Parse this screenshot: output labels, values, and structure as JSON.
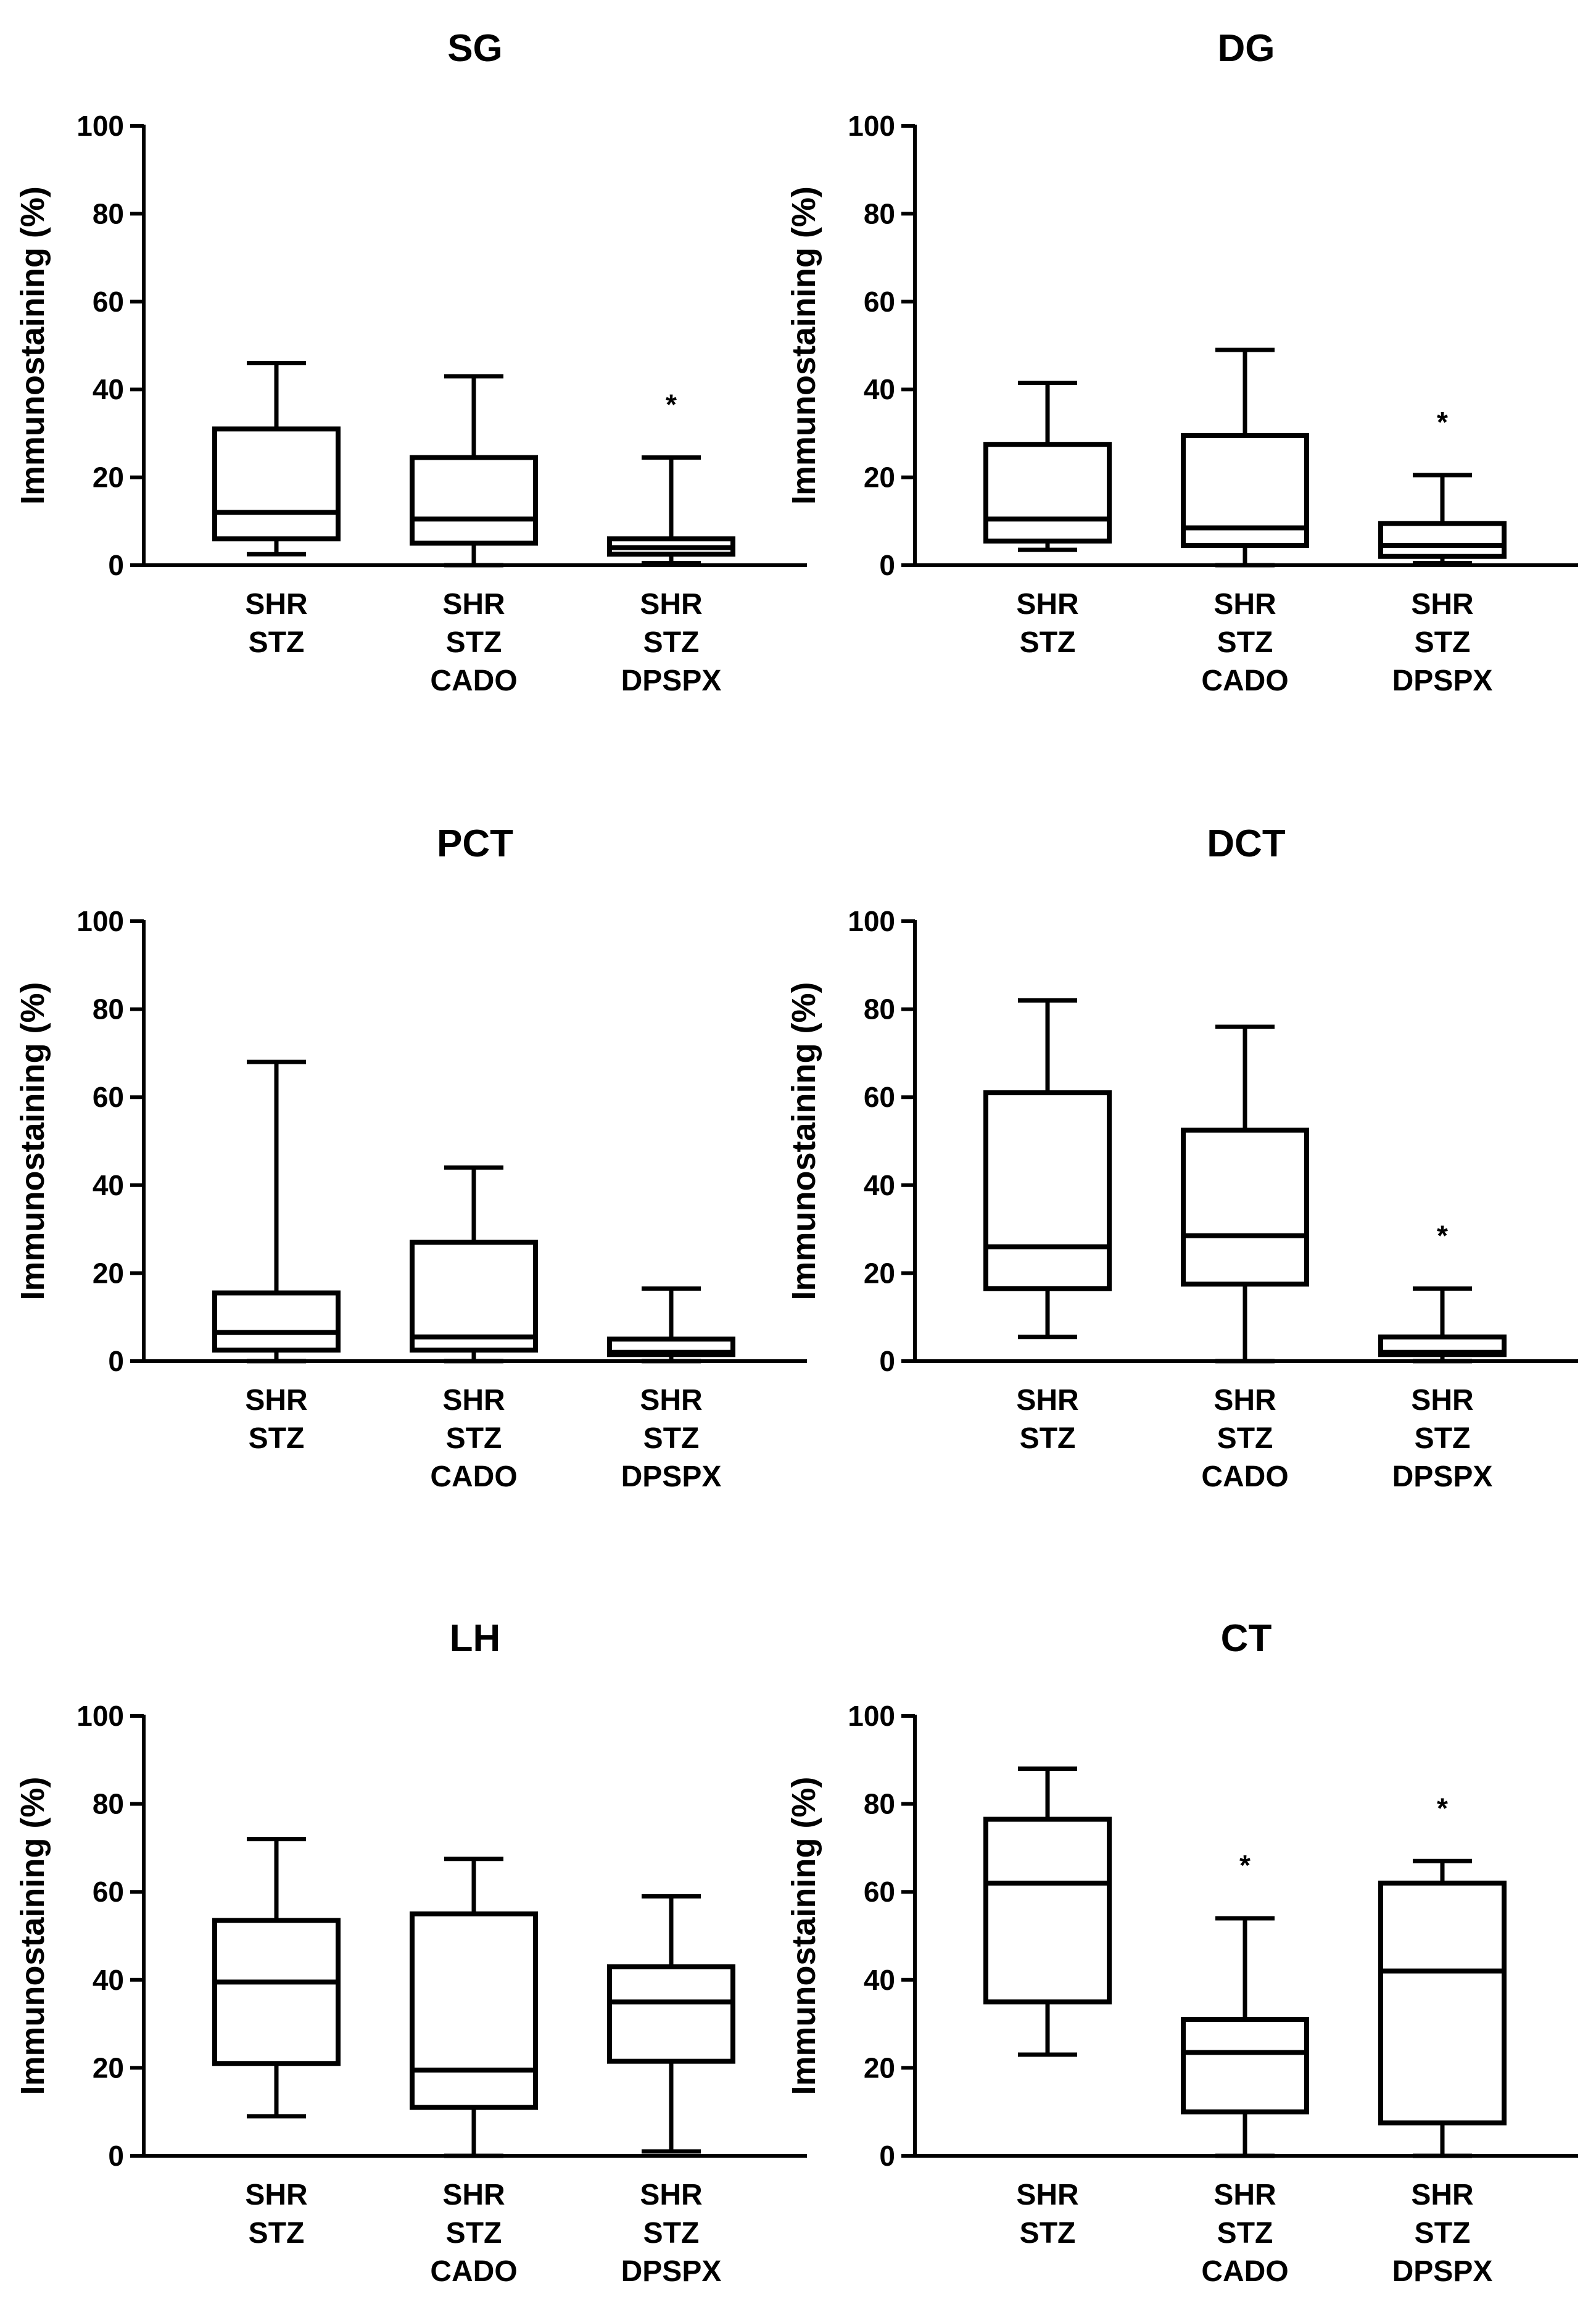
{
  "figure": {
    "colors": {
      "stroke": "#000000",
      "background": "#ffffff"
    }
  },
  "chart_data": [
    {
      "type": "box",
      "title": "SG",
      "ylabel": "Immunostaining (%)",
      "ylim": [
        0,
        100
      ],
      "yticks": [
        "0",
        "20",
        "40",
        "60",
        "80",
        "100"
      ],
      "categories": [
        [
          "SHR",
          "STZ"
        ],
        [
          "SHR",
          "STZ",
          "CADO"
        ],
        [
          "SHR",
          "STZ",
          "DPSPX"
        ]
      ],
      "boxes": [
        {
          "min": 2.5,
          "q1": 6,
          "median": 12,
          "q3": 31,
          "max": 46,
          "significance": ""
        },
        {
          "min": 0,
          "q1": 5,
          "median": 10.5,
          "q3": 24.5,
          "max": 43,
          "significance": ""
        },
        {
          "min": 0.5,
          "q1": 2.5,
          "median": 4,
          "q3": 6,
          "max": 24.5,
          "significance": "*"
        }
      ]
    },
    {
      "type": "box",
      "title": "DG",
      "ylabel": "Immunostaining (%)",
      "ylim": [
        0,
        100
      ],
      "yticks": [
        "0",
        "20",
        "40",
        "60",
        "80",
        "100"
      ],
      "categories": [
        [
          "SHR",
          "STZ"
        ],
        [
          "SHR",
          "STZ",
          "CADO"
        ],
        [
          "SHR",
          "STZ",
          "DPSPX"
        ]
      ],
      "boxes": [
        {
          "min": 3.5,
          "q1": 5.5,
          "median": 10.5,
          "q3": 27.5,
          "max": 41.5,
          "significance": ""
        },
        {
          "min": 0,
          "q1": 4.5,
          "median": 8.5,
          "q3": 29.5,
          "max": 49,
          "significance": ""
        },
        {
          "min": 0.5,
          "q1": 2,
          "median": 4.5,
          "q3": 9.5,
          "max": 20.5,
          "significance": "*"
        }
      ]
    },
    {
      "type": "box",
      "title": "PCT",
      "ylabel": "Immunostaining (%)",
      "ylim": [
        0,
        100
      ],
      "yticks": [
        "0",
        "20",
        "40",
        "60",
        "80",
        "100"
      ],
      "categories": [
        [
          "SHR",
          "STZ"
        ],
        [
          "SHR",
          "STZ",
          "CADO"
        ],
        [
          "SHR",
          "STZ",
          "DPSPX"
        ]
      ],
      "boxes": [
        {
          "min": 0,
          "q1": 2.5,
          "median": 6.5,
          "q3": 15.5,
          "max": 68,
          "significance": ""
        },
        {
          "min": 0,
          "q1": 2.5,
          "median": 5.5,
          "q3": 27,
          "max": 44,
          "significance": ""
        },
        {
          "min": 0,
          "q1": 1.5,
          "median": 2,
          "q3": 5,
          "max": 16.5,
          "significance": ""
        }
      ]
    },
    {
      "type": "box",
      "title": "DCT",
      "ylabel": "Immunostaining (%)",
      "ylim": [
        0,
        100
      ],
      "yticks": [
        "0",
        "20",
        "40",
        "60",
        "80",
        "100"
      ],
      "categories": [
        [
          "SHR",
          "STZ"
        ],
        [
          "SHR",
          "STZ",
          "CADO"
        ],
        [
          "SHR",
          "STZ",
          "DPSPX"
        ]
      ],
      "boxes": [
        {
          "min": 5.5,
          "q1": 16.5,
          "median": 26,
          "q3": 61,
          "max": 82,
          "significance": ""
        },
        {
          "min": 0,
          "q1": 17.5,
          "median": 28.5,
          "q3": 52.5,
          "max": 76,
          "significance": ""
        },
        {
          "min": 0,
          "q1": 1.5,
          "median": 2,
          "q3": 5.5,
          "max": 16.5,
          "significance": "*"
        }
      ]
    },
    {
      "type": "box",
      "title": "LH",
      "ylabel": "Immunostaining (%)",
      "ylim": [
        0,
        100
      ],
      "yticks": [
        "0",
        "20",
        "40",
        "60",
        "80",
        "100"
      ],
      "categories": [
        [
          "SHR",
          "STZ"
        ],
        [
          "SHR",
          "STZ",
          "CADO"
        ],
        [
          "SHR",
          "STZ",
          "DPSPX"
        ]
      ],
      "boxes": [
        {
          "min": 9,
          "q1": 21,
          "median": 39.5,
          "q3": 53.5,
          "max": 72,
          "significance": ""
        },
        {
          "min": 0,
          "q1": 11,
          "median": 19.5,
          "q3": 55,
          "max": 67.5,
          "significance": ""
        },
        {
          "min": 1,
          "q1": 21.5,
          "median": 35,
          "q3": 43,
          "max": 59,
          "significance": ""
        }
      ]
    },
    {
      "type": "box",
      "title": "CT",
      "ylabel": "Immunostaining (%)",
      "ylim": [
        0,
        100
      ],
      "yticks": [
        "0",
        "20",
        "40",
        "60",
        "80",
        "100"
      ],
      "categories": [
        [
          "SHR",
          "STZ"
        ],
        [
          "SHR",
          "STZ",
          "CADO"
        ],
        [
          "SHR",
          "STZ",
          "DPSPX"
        ]
      ],
      "boxes": [
        {
          "min": 23,
          "q1": 35,
          "median": 62,
          "q3": 76.5,
          "max": 88,
          "significance": ""
        },
        {
          "min": 0,
          "q1": 10,
          "median": 23.5,
          "q3": 31,
          "max": 54,
          "significance": "*"
        },
        {
          "min": 0,
          "q1": 7.5,
          "median": 42,
          "q3": 62,
          "max": 67,
          "significance": "*"
        }
      ]
    }
  ]
}
